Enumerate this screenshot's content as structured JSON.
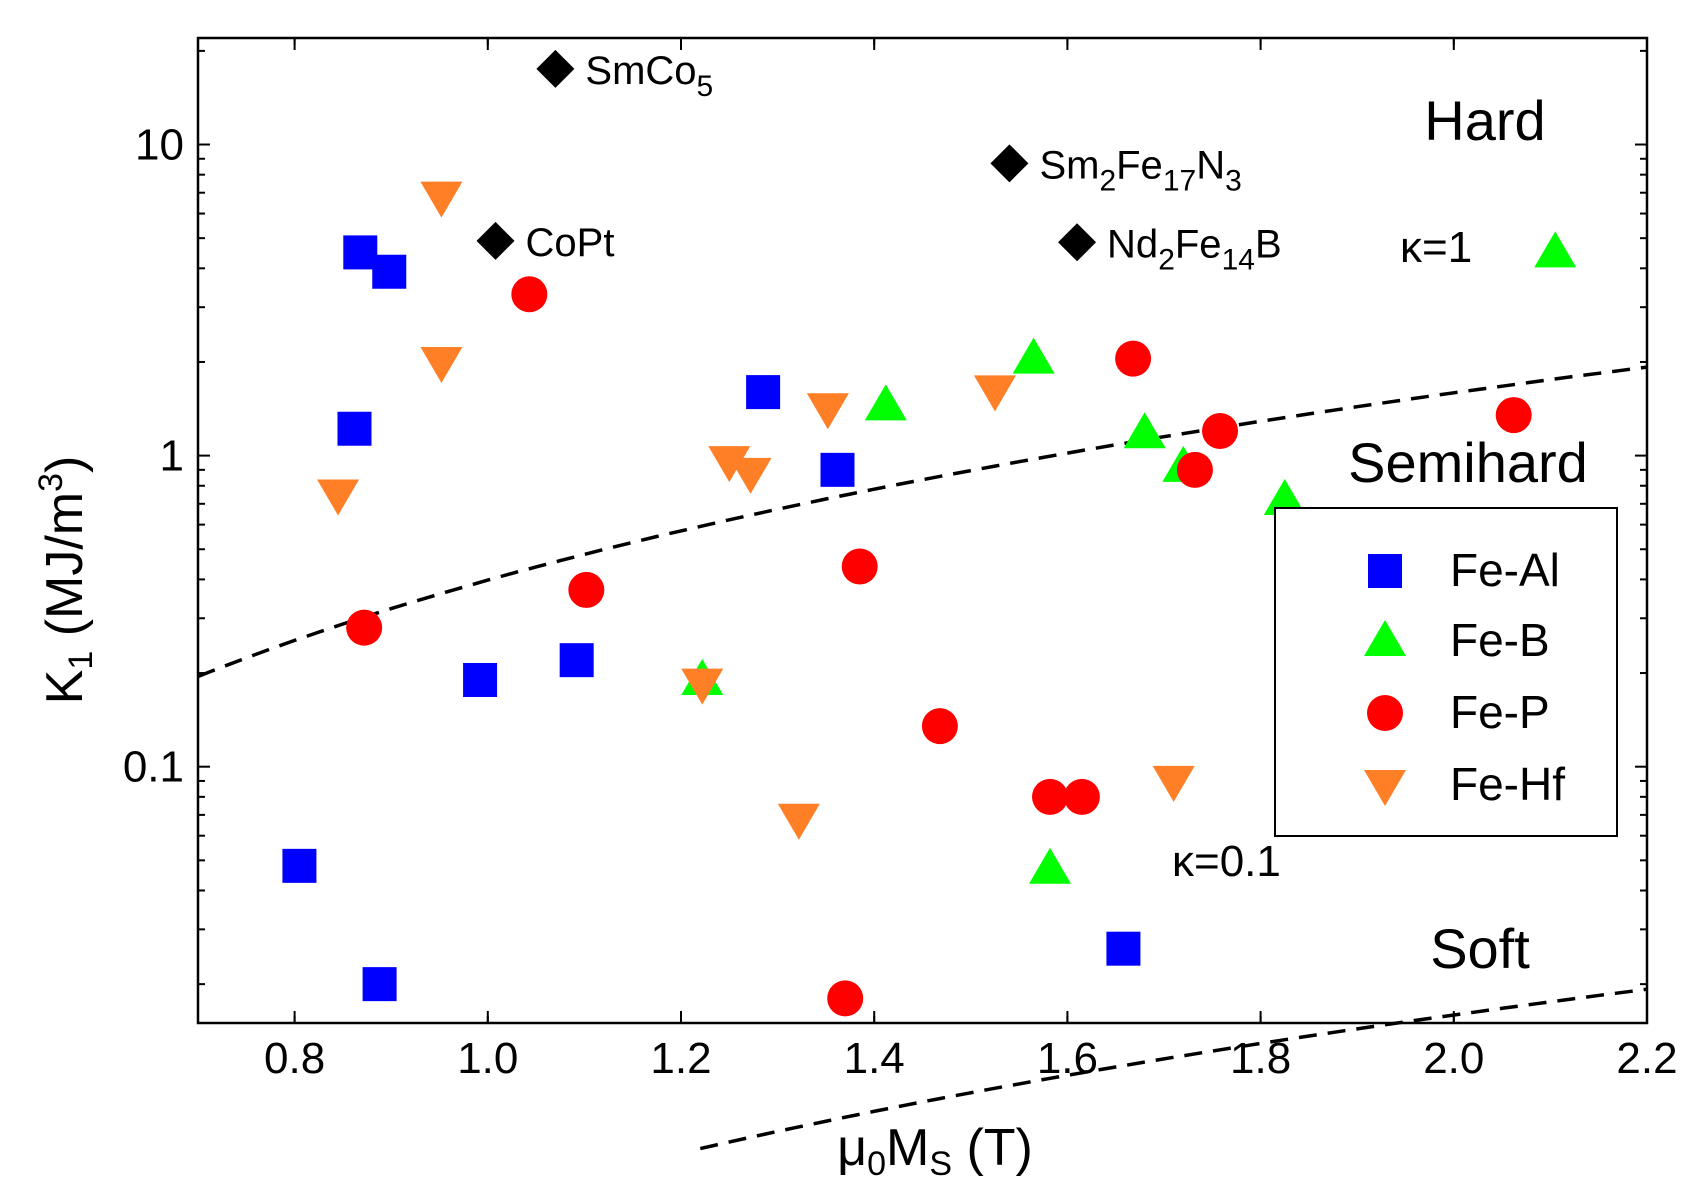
{
  "chart_data": {
    "type": "scatter",
    "xlabel": {
      "symbol": "μ",
      "sub1": "0",
      "main": "M",
      "sub2": "S",
      "unit": " (T)"
    },
    "ylabel": {
      "main": "K",
      "sub": "1",
      "unit": " (MJ/m",
      "sup": "3",
      "close": ")"
    },
    "xlim": [
      0.7,
      2.2
    ],
    "ylim": [
      0.015,
      22
    ],
    "yscale": "log",
    "x_ticks": [
      {
        "value": 0.8,
        "label": "0.8"
      },
      {
        "value": 1.0,
        "label": "1.0"
      },
      {
        "value": 1.2,
        "label": "1.2"
      },
      {
        "value": 1.4,
        "label": "1.4"
      },
      {
        "value": 1.6,
        "label": "1.6"
      },
      {
        "value": 1.8,
        "label": "1.8"
      },
      {
        "value": 2.0,
        "label": "2.0"
      },
      {
        "value": 2.2,
        "label": "2.2"
      }
    ],
    "y_ticks": [
      {
        "value": 0.1,
        "label": "0.1"
      },
      {
        "value": 1,
        "label": "1"
      },
      {
        "value": 10,
        "label": "10"
      }
    ],
    "series": [
      {
        "name": "Fe-Al",
        "marker": "square",
        "color": "#0000ff",
        "points": [
          [
            0.868,
            4.5
          ],
          [
            0.898,
            3.9
          ],
          [
            0.862,
            1.22
          ],
          [
            0.992,
            0.19
          ],
          [
            1.092,
            0.22
          ],
          [
            1.285,
            1.6
          ],
          [
            1.362,
            0.9
          ],
          [
            0.805,
            0.048
          ],
          [
            0.888,
            0.02
          ],
          [
            1.658,
            0.026
          ]
        ]
      },
      {
        "name": "Fe-B",
        "marker": "triangle-up",
        "color": "#00ff00",
        "points": [
          [
            2.105,
            4.5
          ],
          [
            1.565,
            2.05
          ],
          [
            1.412,
            1.45
          ],
          [
            1.68,
            1.18
          ],
          [
            1.72,
            0.92
          ],
          [
            1.825,
            0.72
          ],
          [
            1.222,
            0.19
          ],
          [
            1.582,
            0.047
          ]
        ]
      },
      {
        "name": "Fe-P",
        "marker": "circle",
        "color": "#ff0000",
        "points": [
          [
            1.043,
            3.3
          ],
          [
            1.668,
            2.05
          ],
          [
            1.758,
            1.2
          ],
          [
            1.732,
            0.9
          ],
          [
            2.062,
            1.35
          ],
          [
            1.385,
            0.44
          ],
          [
            1.102,
            0.37
          ],
          [
            0.872,
            0.28
          ],
          [
            1.468,
            0.135
          ],
          [
            1.582,
            0.08
          ],
          [
            1.615,
            0.08
          ],
          [
            1.37,
            0.018
          ]
        ]
      },
      {
        "name": "Fe-Hf",
        "marker": "triangle-down",
        "color": "#ff7f27",
        "points": [
          [
            0.952,
            6.8
          ],
          [
            0.952,
            2.0
          ],
          [
            0.845,
            0.75
          ],
          [
            1.25,
            0.96
          ],
          [
            1.272,
            0.88
          ],
          [
            1.352,
            1.42
          ],
          [
            1.525,
            1.62
          ],
          [
            1.222,
            0.185
          ],
          [
            1.322,
            0.068
          ],
          [
            1.71,
            0.09
          ]
        ]
      }
    ],
    "reference_materials": [
      {
        "x": 1.07,
        "y": 17.5,
        "marker": "diamond",
        "color": "#000000",
        "label": {
          "main": "SmCo",
          "parts": [
            {
              "text": "5",
              "sub": true
            }
          ]
        }
      },
      {
        "x": 1.54,
        "y": 8.7,
        "marker": "diamond",
        "color": "#000000",
        "label": {
          "main": "Sm",
          "parts": [
            {
              "text": "2",
              "sub": true
            },
            {
              "text": "Fe",
              "sub": false
            },
            {
              "text": "17",
              "sub": true
            },
            {
              "text": "N",
              "sub": false
            },
            {
              "text": "3",
              "sub": true
            }
          ]
        }
      },
      {
        "x": 1.008,
        "y": 4.9,
        "marker": "diamond",
        "color": "#000000",
        "label": {
          "main": "CoPt",
          "parts": []
        }
      },
      {
        "x": 1.61,
        "y": 4.85,
        "marker": "diamond",
        "color": "#000000",
        "label": {
          "main": "Nd",
          "parts": [
            {
              "text": "2",
              "sub": true
            },
            {
              "text": "Fe",
              "sub": false
            },
            {
              "text": "14",
              "sub": true
            },
            {
              "text": "B",
              "sub": false
            }
          ]
        }
      }
    ],
    "reference_lines": [
      {
        "label": "κ=1",
        "kappa": 1,
        "style": "dashed",
        "x_range": [
          0.7,
          2.2
        ]
      },
      {
        "label": "κ=0.1",
        "kappa": 0.1,
        "style": "dashed",
        "x_range": [
          1.22,
          2.2
        ]
      }
    ],
    "region_labels": [
      "Hard",
      "Semihard",
      "Soft"
    ],
    "legend": {
      "position": "right",
      "entries": [
        "Fe-Al",
        "Fe-B",
        "Fe-P",
        "Fe-Hf"
      ]
    }
  }
}
